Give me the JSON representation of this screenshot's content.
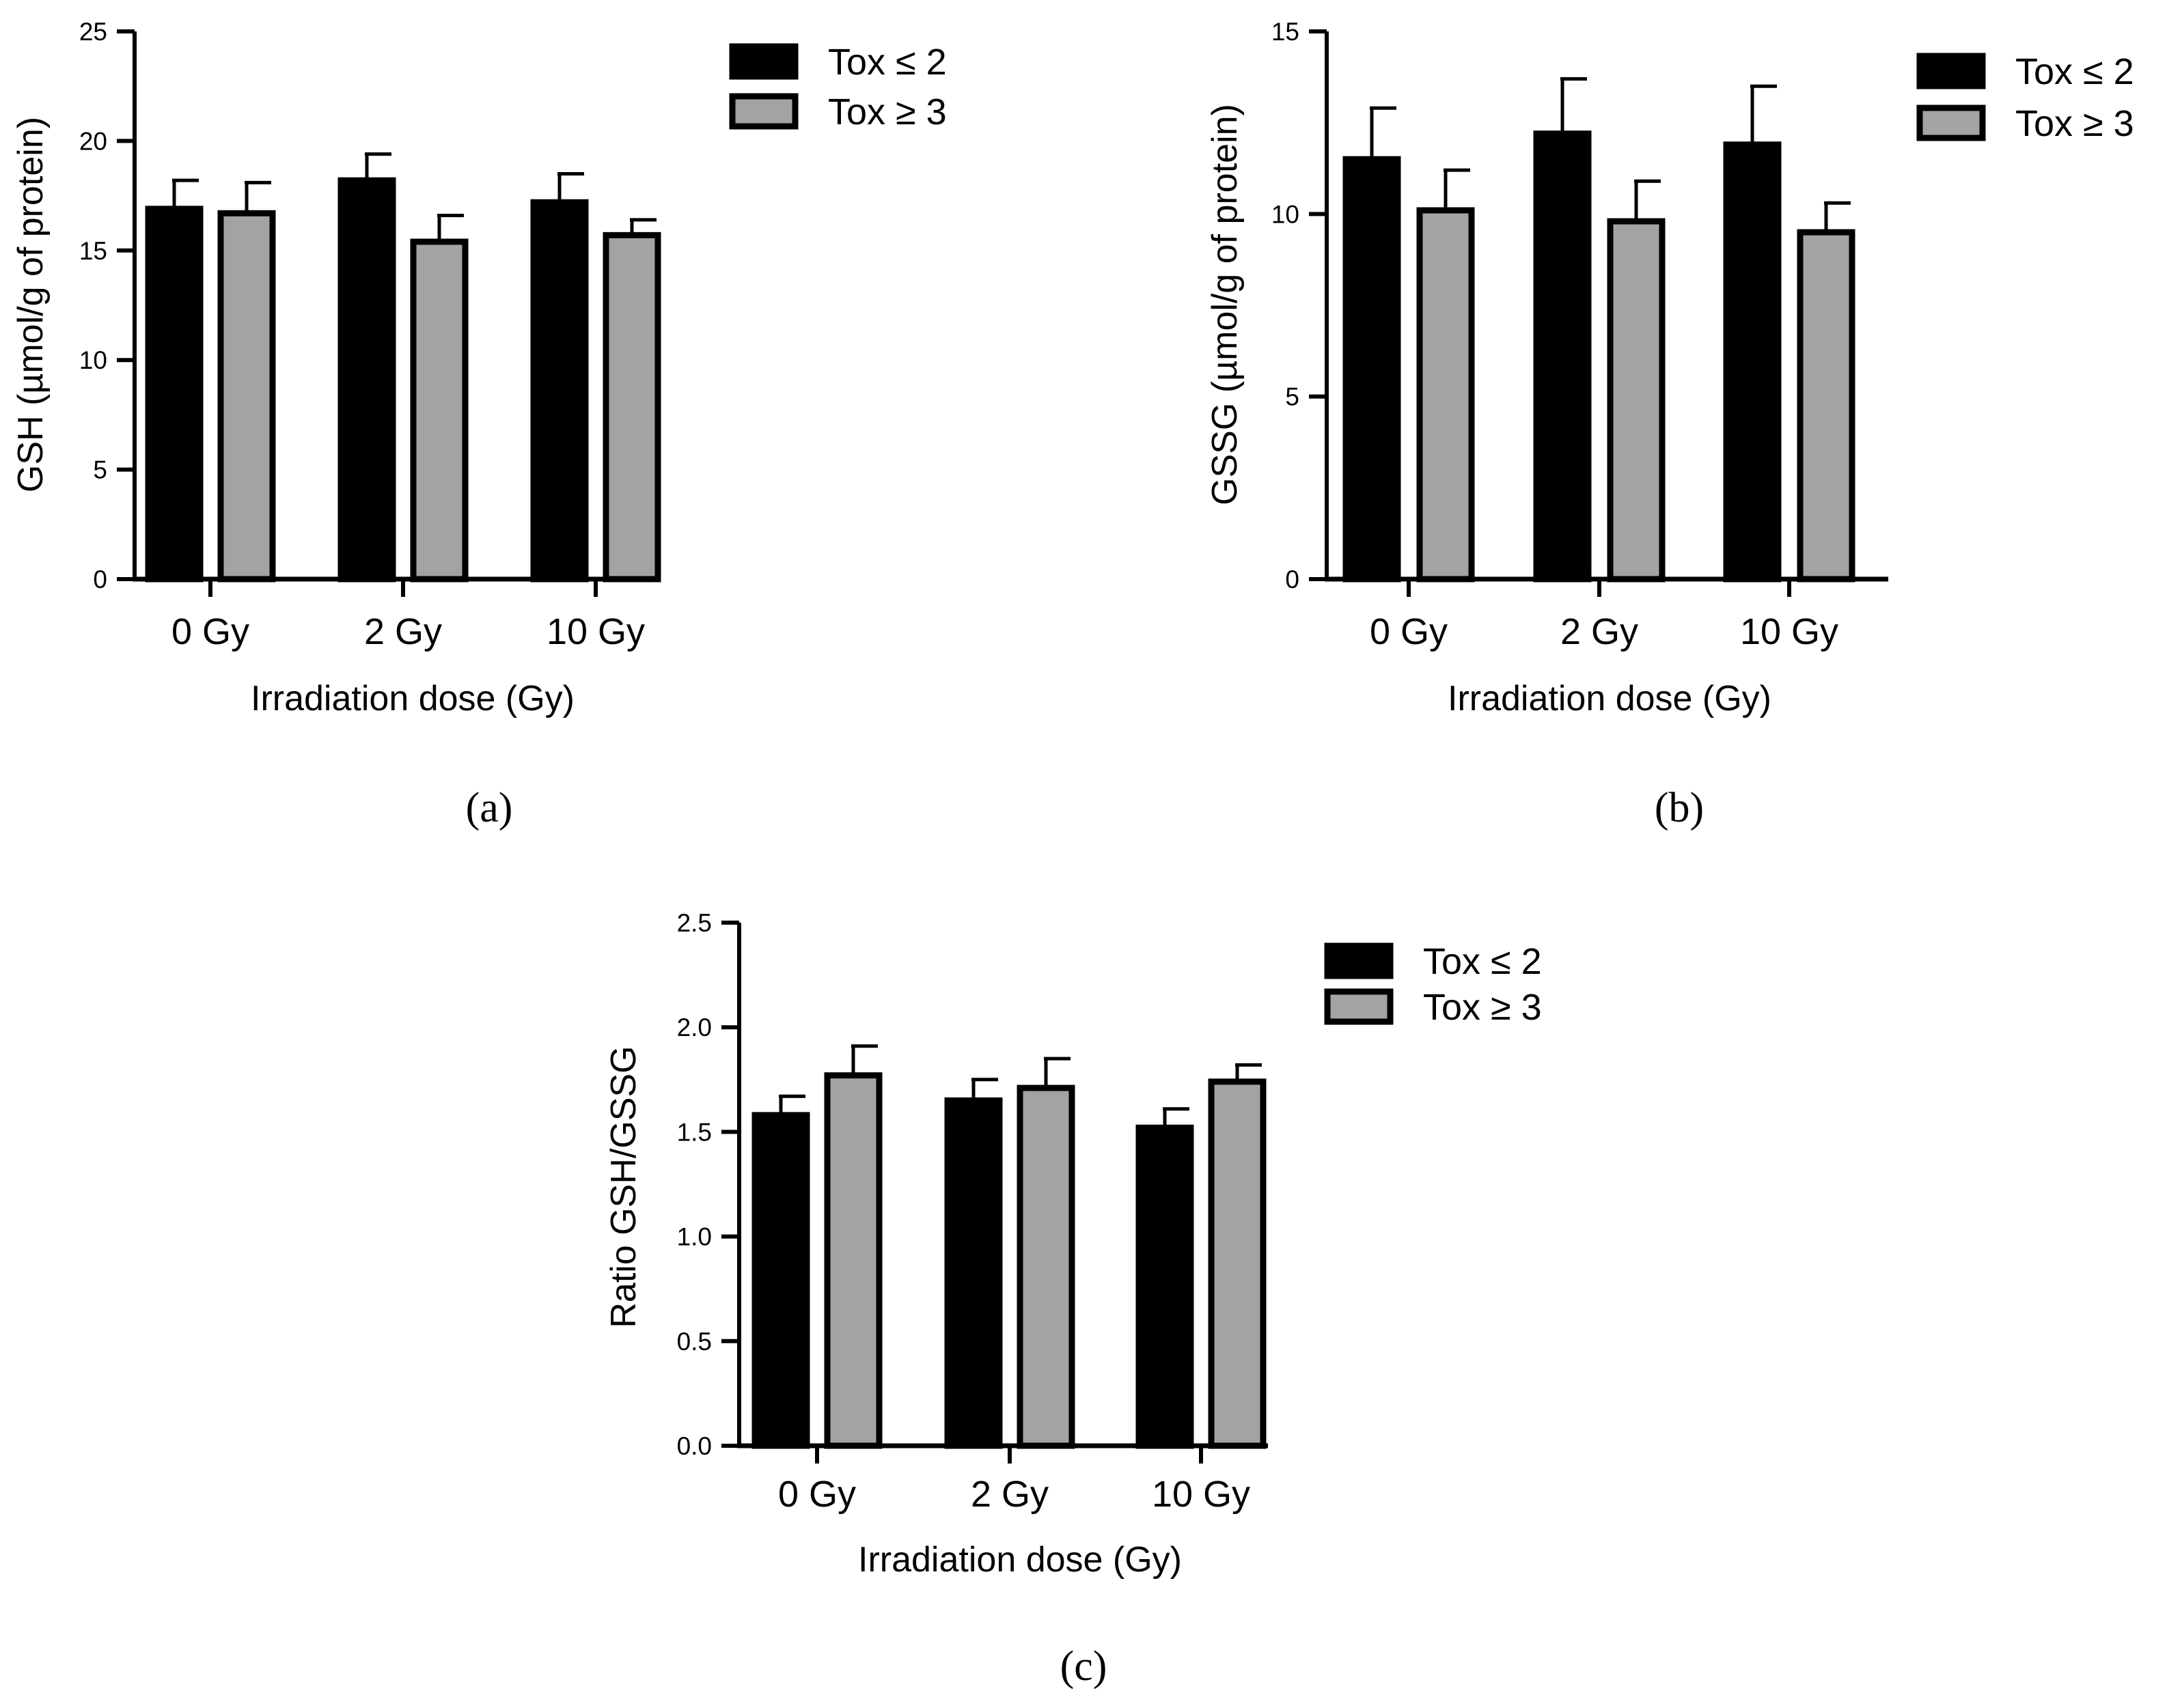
{
  "colors": {
    "tox_le2": "#000000",
    "tox_ge3": "#a3a3a6",
    "stroke": "#000000"
  },
  "chart_data": [
    {
      "id": "a",
      "panel_label": "(a)",
      "type": "bar",
      "categories": [
        "0 Gy",
        "2 Gy",
        "10 Gy"
      ],
      "xlabel": "Irradiation dose (Gy)",
      "ylabel": "GSH (µmol/g of protein)",
      "ylim": [
        0,
        25
      ],
      "yticks": [
        0,
        5,
        10,
        15,
        20,
        25
      ],
      "ytick_labels": [
        "0",
        "5",
        "10",
        "15",
        "20",
        "25"
      ],
      "legend_position": "top-right",
      "series": [
        {
          "name": "Tox ≤ 2",
          "values": [
            16.9,
            18.2,
            17.2
          ],
          "errors": [
            1.3,
            1.2,
            1.3
          ]
        },
        {
          "name": "Tox ≥ 3",
          "values": [
            16.7,
            15.4,
            15.7
          ],
          "errors": [
            1.4,
            1.2,
            0.7
          ]
        }
      ]
    },
    {
      "id": "b",
      "panel_label": "(b)",
      "type": "bar",
      "categories": [
        "0 Gy",
        "2 Gy",
        "10 Gy"
      ],
      "xlabel": "Irradiation dose (Gy)",
      "ylabel": "GSSG (µmol/g of protein)",
      "ylim": [
        0,
        15
      ],
      "yticks": [
        0,
        5,
        10,
        15
      ],
      "ytick_labels": [
        "0",
        "5",
        "10",
        "15"
      ],
      "legend_position": "top-right",
      "series": [
        {
          "name": "Tox ≤ 2",
          "values": [
            11.5,
            12.2,
            11.9
          ],
          "errors": [
            1.4,
            1.5,
            1.6
          ]
        },
        {
          "name": "Tox ≥ 3",
          "values": [
            10.1,
            9.8,
            9.5
          ],
          "errors": [
            1.1,
            1.1,
            0.8
          ]
        }
      ]
    },
    {
      "id": "c",
      "panel_label": "(c)",
      "type": "bar",
      "categories": [
        "0 Gy",
        "2 Gy",
        "10 Gy"
      ],
      "xlabel": "Irradiation dose (Gy)",
      "ylabel": "Ratio GSH/GSSG",
      "ylim": [
        0,
        2.5
      ],
      "yticks": [
        0,
        0.5,
        1.0,
        1.5,
        2.0,
        2.5
      ],
      "ytick_labels": [
        "0.0",
        "0.5",
        "1.0",
        "1.5",
        "2.0",
        "2.5"
      ],
      "legend_position": "top-right",
      "series": [
        {
          "name": "Tox ≤ 2",
          "values": [
            1.58,
            1.65,
            1.52
          ],
          "errors": [
            0.09,
            0.1,
            0.09
          ]
        },
        {
          "name": "Tox ≥ 3",
          "values": [
            1.77,
            1.71,
            1.74
          ],
          "errors": [
            0.14,
            0.14,
            0.08
          ]
        }
      ]
    }
  ]
}
